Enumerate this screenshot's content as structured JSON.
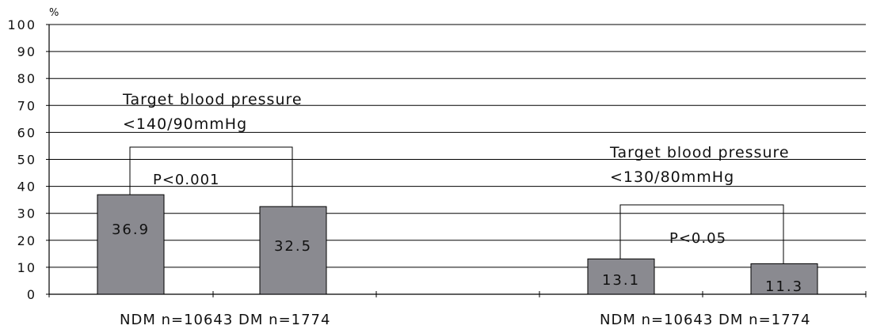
{
  "chart_data": {
    "type": "bar",
    "ylabel": "%",
    "ylim": [
      0,
      100
    ],
    "yticks": [
      0,
      10,
      20,
      30,
      40,
      50,
      60,
      70,
      80,
      90,
      100
    ],
    "grid": true,
    "bar_color": "#8a8a90",
    "groups": [
      {
        "xlabel": "NDM  n=10643  DM n=1774",
        "annotation": [
          "Target  blood  pressure",
          "<140/90mmHg"
        ],
        "pvalue": "P<0.001",
        "bars": [
          {
            "name": "NDM",
            "value": 36.9,
            "label": "36.9"
          },
          {
            "name": "DM",
            "value": 32.5,
            "label": "32.5"
          }
        ]
      },
      {
        "xlabel": "NDM  n=10643  DM n=1774",
        "annotation": [
          "Target  blood  pressure",
          "<130/80mmHg"
        ],
        "pvalue": "P<0.05",
        "bars": [
          {
            "name": "NDM",
            "value": 13.1,
            "label": "13.1"
          },
          {
            "name": "DM",
            "value": 11.3,
            "label": "11.3"
          }
        ]
      }
    ]
  }
}
